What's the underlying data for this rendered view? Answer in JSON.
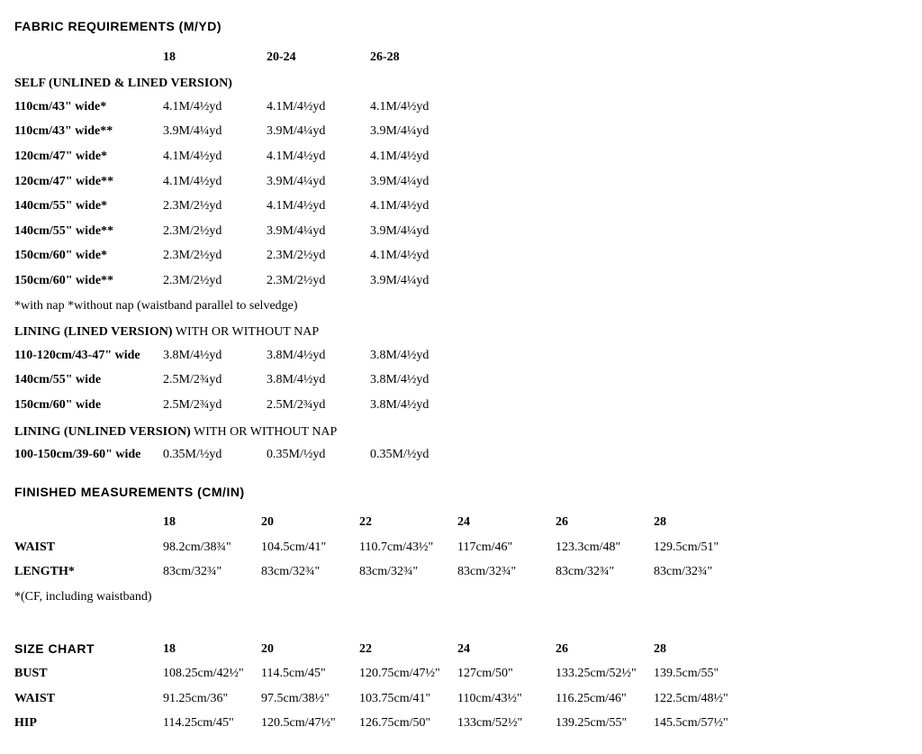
{
  "fabric": {
    "title": "FABRIC REQUIREMENTS (M/YD)",
    "size_headers": [
      "18",
      "20-24",
      "26-28"
    ],
    "self_heading": "SELF (UNLINED & LINED VERSION)",
    "self_rows": [
      {
        "label": "110cm/43\" wide*",
        "v": [
          "4.1M/4½yd",
          "4.1M/4½yd",
          "4.1M/4½yd"
        ]
      },
      {
        "label": "110cm/43\" wide**",
        "v": [
          "3.9M/4¼yd",
          "3.9M/4¼yd",
          "3.9M/4¼yd"
        ]
      },
      {
        "label": "120cm/47\" wide*",
        "v": [
          "4.1M/4½yd",
          "4.1M/4½yd",
          "4.1M/4½yd"
        ]
      },
      {
        "label": "120cm/47\" wide**",
        "v": [
          "4.1M/4½yd",
          "3.9M/4¼yd",
          "3.9M/4¼yd"
        ]
      },
      {
        "label": "140cm/55\" wide*",
        "v": [
          "2.3M/2½yd",
          "4.1M/4½yd",
          "4.1M/4½yd"
        ]
      },
      {
        "label": "140cm/55\" wide**",
        "v": [
          "2.3M/2½yd",
          "3.9M/4¼yd",
          "3.9M/4¼yd"
        ]
      },
      {
        "label": "150cm/60\" wide*",
        "v": [
          "2.3M/2½yd",
          "2.3M/2½yd",
          "4.1M/4½yd"
        ]
      },
      {
        "label": "150cm/60\" wide**",
        "v": [
          "2.3M/2½yd",
          "2.3M/2½yd",
          "3.9M/4¼yd"
        ]
      }
    ],
    "self_note": "*with nap *without nap (waistband parallel to selvedge)",
    "lining_lined_heading_bold": "LINING (LINED VERSION)",
    "lining_lined_heading_regular": " WITH OR WITHOUT NAP",
    "lining_lined_rows": [
      {
        "label": "110-120cm/43-47\" wide",
        "v": [
          "3.8M/4½yd",
          "3.8M/4½yd",
          "3.8M/4½yd"
        ]
      },
      {
        "label": "140cm/55\" wide",
        "v": [
          "2.5M/2¾yd",
          "3.8M/4½yd",
          "3.8M/4½yd"
        ]
      },
      {
        "label": "150cm/60\" wide",
        "v": [
          "2.5M/2¾yd",
          "2.5M/2¾yd",
          "3.8M/4½yd"
        ]
      }
    ],
    "lining_unlined_heading_bold": "LINING (UNLINED VERSION)",
    "lining_unlined_heading_regular": " WITH OR WITHOUT NAP",
    "lining_unlined_rows": [
      {
        "label": "100-150cm/39-60\" wide",
        "v": [
          "0.35M/½yd",
          "0.35M/½yd",
          "0.35M/½yd"
        ]
      }
    ]
  },
  "finished": {
    "title": "FINISHED MEASUREMENTS (CM/IN)",
    "size_headers": [
      "18",
      "20",
      "22",
      "24",
      "26",
      "28"
    ],
    "rows": [
      {
        "label": "WAIST",
        "v": [
          "98.2cm/38¾\"",
          "104.5cm/41\"",
          "110.7cm/43½\"",
          "117cm/46\"",
          "123.3cm/48\"",
          "129.5cm/51\""
        ]
      },
      {
        "label": "LENGTH*",
        "v": [
          "83cm/32¾\"",
          "83cm/32¾\"",
          "83cm/32¾\"",
          "83cm/32¾\"",
          "83cm/32¾\"",
          "83cm/32¾\""
        ]
      }
    ],
    "note": "*(CF, including waistband)"
  },
  "sizechart": {
    "title": "SIZE CHART",
    "size_headers": [
      "18",
      "20",
      "22",
      "24",
      "26",
      "28"
    ],
    "rows": [
      {
        "label": "BUST",
        "v": [
          "108.25cm/42½\"",
          "114.5cm/45\"",
          "120.75cm/47½\"",
          "127cm/50\"",
          "133.25cm/52½\"",
          "139.5cm/55\""
        ]
      },
      {
        "label": "WAIST",
        "v": [
          "91.25cm/36\"",
          "97.5cm/38½\"",
          "103.75cm/41\"",
          "110cm/43½\"",
          "116.25cm/46\"",
          "122.5cm/48½\""
        ]
      },
      {
        "label": "HIP",
        "v": [
          "114.25cm/45\"",
          "120.5cm/47½\"",
          "126.75cm/50\"",
          "133cm/52½\"",
          "139.25cm/55\"",
          "145.5cm/57½\""
        ]
      }
    ]
  }
}
